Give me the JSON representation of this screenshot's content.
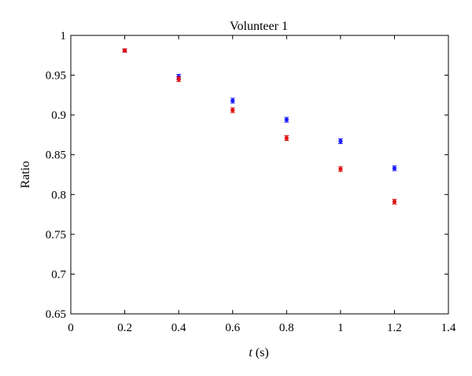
{
  "chart_data": {
    "type": "scatter",
    "title": "Volunteer 1",
    "xlabel_var": "t",
    "xlabel_unit": "(s)",
    "ylabel": "Ratio",
    "xlim": [
      0,
      1.4
    ],
    "ylim": [
      0.65,
      1
    ],
    "xticks": [
      0,
      0.2,
      0.4,
      0.6,
      0.8,
      1,
      1.2,
      1.4
    ],
    "yticks": [
      0.65,
      0.7,
      0.75,
      0.8,
      0.85,
      0.9,
      0.95,
      1
    ],
    "xtick_labels": [
      "0",
      "0.2",
      "0.4",
      "0.6",
      "0.8",
      "1",
      "1.2",
      "1.4"
    ],
    "ytick_labels": [
      "0.65",
      "0.7",
      "0.75",
      "0.8",
      "0.85",
      "0.9",
      "0.95",
      "1"
    ],
    "grid": false,
    "series": [
      {
        "color": "#1a1aff",
        "x": [
          0.2,
          0.4,
          0.6,
          0.8,
          1.0,
          1.2
        ],
        "y": [
          0.981,
          0.948,
          0.918,
          0.894,
          0.867,
          0.833
        ],
        "err": [
          0.002,
          0.003,
          0.003,
          0.003,
          0.003,
          0.003
        ]
      },
      {
        "color": "#e01010",
        "x": [
          0.2,
          0.4,
          0.6,
          0.8,
          1.0,
          1.2
        ],
        "y": [
          0.981,
          0.945,
          0.906,
          0.871,
          0.832,
          0.791
        ],
        "err": [
          0.002,
          0.003,
          0.003,
          0.003,
          0.003,
          0.003
        ]
      }
    ]
  }
}
